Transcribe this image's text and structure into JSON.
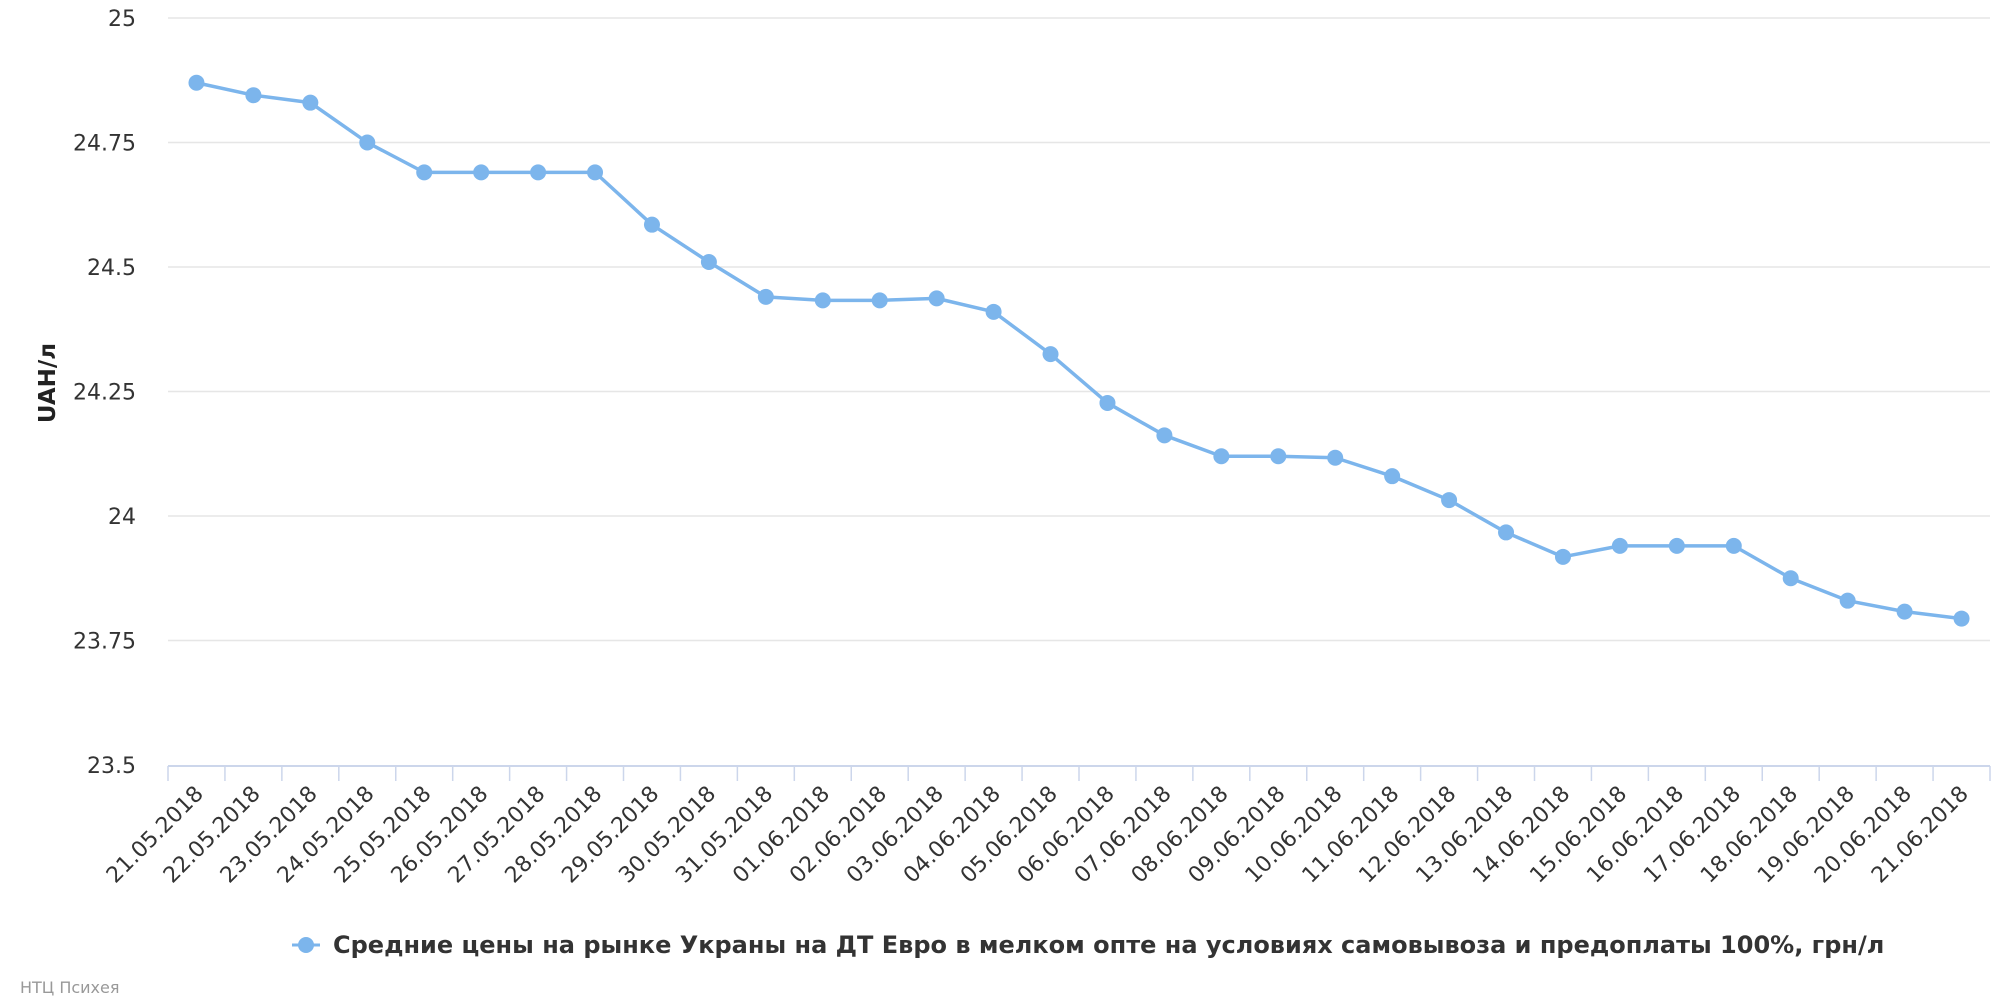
{
  "chart_data": {
    "type": "line",
    "title": "",
    "xlabel": "",
    "ylabel": "UAH/л",
    "ylim": [
      23.5,
      25
    ],
    "y_ticks": [
      "23.5",
      "23.75",
      "24",
      "24.25",
      "24.5",
      "24.75",
      "25"
    ],
    "y_tick_values": [
      23.5,
      23.75,
      24,
      24.25,
      24.5,
      24.75,
      25
    ],
    "grid": true,
    "legend_position": "bottom-center",
    "categories": [
      "21.05.2018",
      "22.05.2018",
      "23.05.2018",
      "24.05.2018",
      "25.05.2018",
      "26.05.2018",
      "27.05.2018",
      "28.05.2018",
      "29.05.2018",
      "30.05.2018",
      "31.05.2018",
      "01.06.2018",
      "02.06.2018",
      "03.06.2018",
      "04.06.2018",
      "05.06.2018",
      "06.06.2018",
      "07.06.2018",
      "08.06.2018",
      "09.06.2018",
      "10.06.2018",
      "11.06.2018",
      "12.06.2018",
      "13.06.2018",
      "14.06.2018",
      "15.06.2018",
      "16.06.2018",
      "17.06.2018",
      "18.06.2018",
      "19.06.2018",
      "20.06.2018",
      "21.06.2018"
    ],
    "series": [
      {
        "name": "Средние цены на рынке Украны на ДТ Евро в мелком опте на условиях самовывоза и предоплаты 100%, грн/л",
        "color": "#7cb5ec",
        "values": [
          24.87,
          24.845,
          24.83,
          24.75,
          24.69,
          24.69,
          24.69,
          24.69,
          24.585,
          24.51,
          24.44,
          24.433,
          24.433,
          24.437,
          24.41,
          24.325,
          24.227,
          24.162,
          24.12,
          24.12,
          24.117,
          24.08,
          24.032,
          23.967,
          23.918,
          23.94,
          23.94,
          23.94,
          23.875,
          23.83,
          23.808,
          23.794
        ]
      }
    ]
  },
  "credits": "НТЦ Психея"
}
